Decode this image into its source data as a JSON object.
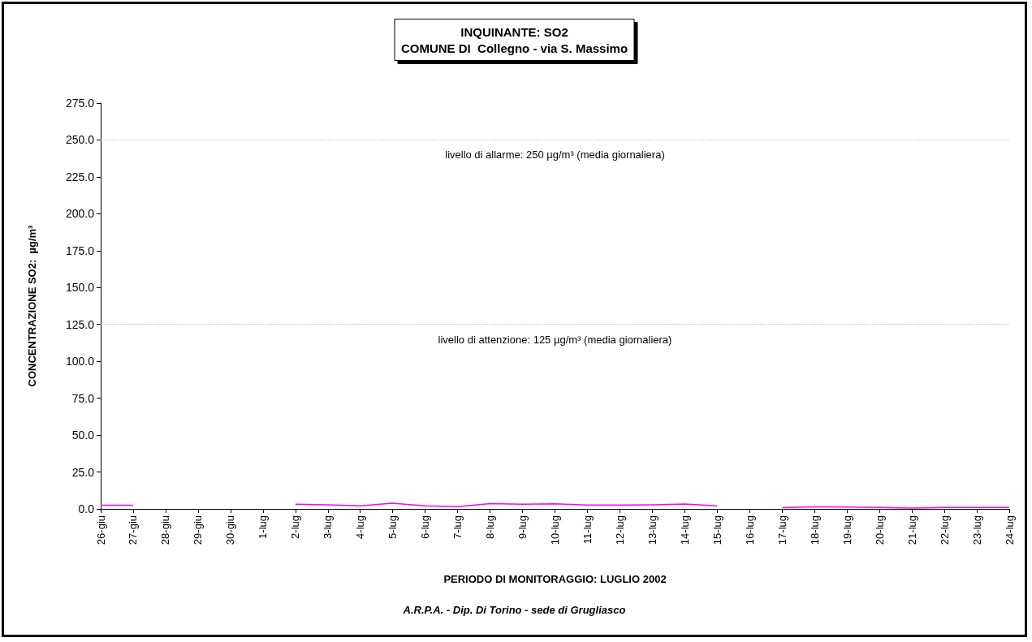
{
  "chart_data": {
    "type": "line",
    "title": "INQUINANTE: SO2\nCOMUNE DI  Collegno - via S. Massimo",
    "xlabel": "PERIODO DI MONITORAGGIO: LUGLIO 2002",
    "ylabel": "CONCENTRAZIONE SO2:  µg/m³",
    "categories": [
      "26-giu",
      "27-giu",
      "28-giu",
      "29-giu",
      "30-giu",
      "1-lug",
      "2-lug",
      "3-lug",
      "4-lug",
      "5-lug",
      "6-lug",
      "7-lug",
      "8-lug",
      "9-lug",
      "10-lug",
      "11-lug",
      "12-lug",
      "13-lug",
      "14-lug",
      "15-lug",
      "16-lug",
      "17-lug",
      "18-lug",
      "19-lug",
      "20-lug",
      "21-lug",
      "22-lug",
      "23-lug",
      "24-lug"
    ],
    "series": [
      {
        "color": "#ff00ff",
        "values": [
          2.5,
          2.5,
          null,
          null,
          null,
          null,
          3.1,
          2.7,
          2.0,
          3.9,
          2.0,
          1.5,
          3.6,
          3.2,
          3.4,
          2.6,
          2.6,
          2.8,
          3.3,
          2.0,
          null,
          0.8,
          1.4,
          1.2,
          1.0,
          0.6,
          1.0,
          1.0,
          1.0
        ]
      }
    ],
    "ylim": [
      0,
      275
    ],
    "yticks": [
      {
        "value": 0,
        "label": "0.0"
      },
      {
        "value": 25,
        "label": "25.0"
      },
      {
        "value": 50,
        "label": "50.0"
      },
      {
        "value": 75,
        "label": "75.0"
      },
      {
        "value": 100,
        "label": "100.0"
      },
      {
        "value": 125,
        "label": "125.0"
      },
      {
        "value": 150,
        "label": "150.0"
      },
      {
        "value": 175,
        "label": "175.0"
      },
      {
        "value": 200,
        "label": "200.0"
      },
      {
        "value": 225,
        "label": "225.0"
      },
      {
        "value": 250,
        "label": "250.0"
      },
      {
        "value": 275,
        "label": "275.0"
      }
    ],
    "ref_lines": [
      {
        "axis": "y",
        "value": 250,
        "label": "livello di allarme: 250 µg/m³ (media giornaliera)",
        "color": "#c0c0c0",
        "line_style": "dotted"
      },
      {
        "axis": "y",
        "value": 125,
        "label": "livello di attenzione: 125 µg/m³ (media giornaliera)",
        "color": "#c0c0c0",
        "line_style": "dotted"
      }
    ],
    "annotations": [
      "A.R.P.A. - Dip. Di Torino - sede di Grugliasco"
    ],
    "grid": false,
    "marker": "none",
    "line_style": "solid"
  }
}
